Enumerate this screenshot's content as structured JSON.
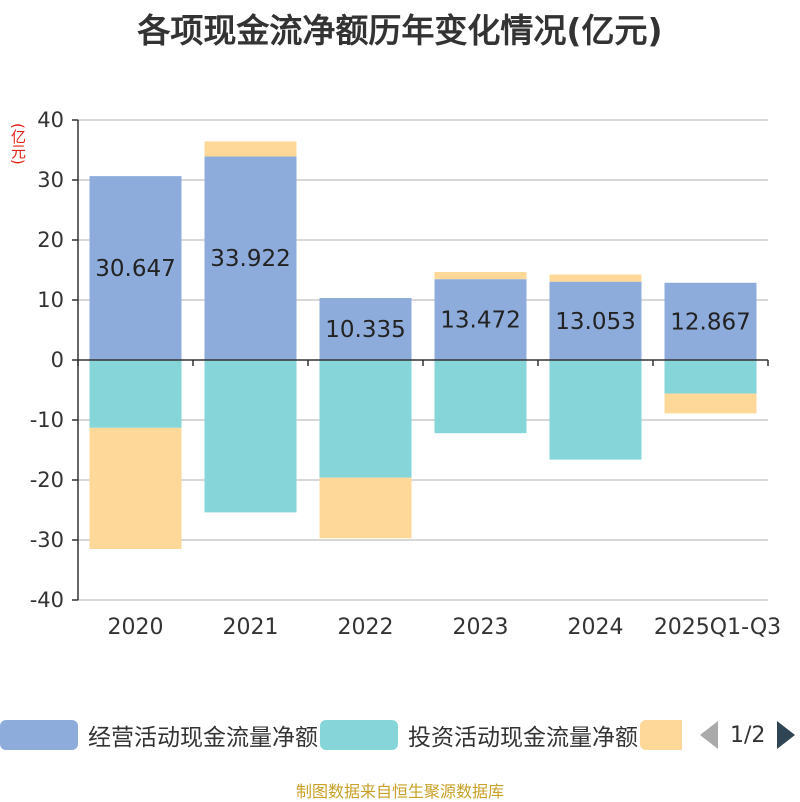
{
  "chart_data": {
    "type": "bar",
    "stacked": true,
    "title": "各项现金流净额历年变化情况(亿元)",
    "ylabel": "(亿元)",
    "xlabel": "",
    "ylim": [
      -40,
      40
    ],
    "yticks": [
      40,
      30,
      20,
      10,
      0,
      -10,
      -20,
      -30,
      -40
    ],
    "categories": [
      "2020",
      "2021",
      "2022",
      "2023",
      "2024",
      "2025Q1-Q3"
    ],
    "series": [
      {
        "name": "经营活动现金流量净额",
        "color": "#8eacdb",
        "values": [
          30.647,
          33.922,
          10.335,
          13.472,
          13.053,
          12.867
        ],
        "show_labels": true
      },
      {
        "name": "投资活动现金流量净额",
        "color": "#86d5d8",
        "values": [
          -11.3,
          -25.4,
          -19.6,
          -12.2,
          -16.6,
          -5.6
        ],
        "show_labels": false
      },
      {
        "name": "",
        "color": "#fdd898",
        "values": [
          -20.2,
          2.5,
          -10.1,
          1.2,
          1.2,
          -3.3
        ],
        "show_labels": false
      }
    ],
    "legend_position": "bottom"
  },
  "pager": {
    "text": "1/2"
  },
  "source": "制图数据来自恒生聚源数据库"
}
